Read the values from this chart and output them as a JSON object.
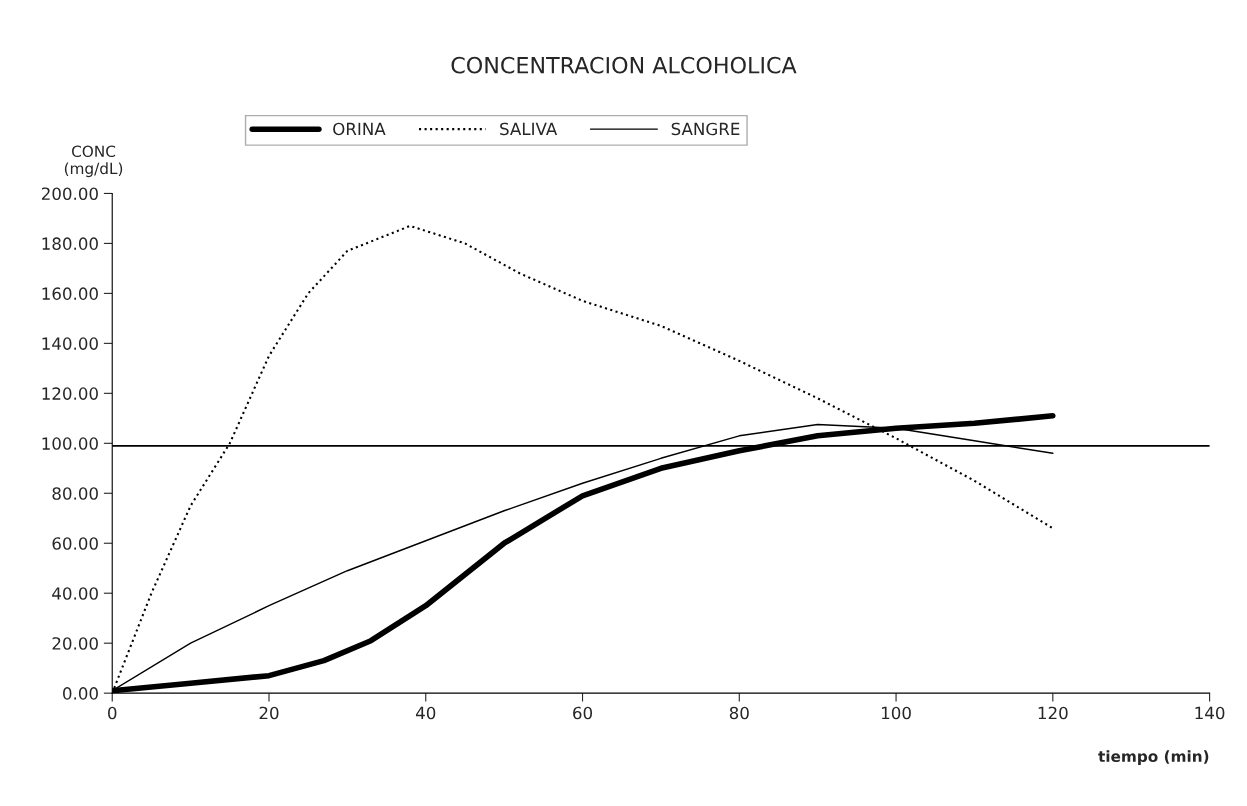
{
  "chart_data": {
    "type": "line",
    "title": "CONCENTRACION ALCOHOLICA",
    "xlabel": "tiempo (min)",
    "ylabel": "CONC\n(mg/dL)",
    "xlim": [
      0,
      140
    ],
    "xticks": [
      0,
      20,
      40,
      60,
      80,
      100,
      120,
      140
    ],
    "ylim": [
      0,
      200
    ],
    "yticks": [
      {
        "value": 0,
        "label": "0.00"
      },
      {
        "value": 20,
        "label": "20.00"
      },
      {
        "value": 40,
        "label": "40.00"
      },
      {
        "value": 60,
        "label": "60.00"
      },
      {
        "value": 80,
        "label": "80.00"
      },
      {
        "value": 100,
        "label": "100.00"
      },
      {
        "value": 120,
        "label": "120.00"
      },
      {
        "value": 140,
        "label": "140.00"
      },
      {
        "value": 160,
        "label": "160.00"
      },
      {
        "value": 180,
        "label": "180.00"
      },
      {
        "value": 200,
        "label": "200.00"
      }
    ],
    "grid": false,
    "legend": "top",
    "marker": "none",
    "ref_lines": [
      {
        "axis": "y",
        "value": 99,
        "color": "#000000",
        "line_style": "solid"
      }
    ],
    "series": [
      {
        "name": "ORINA",
        "color": "#000000",
        "line_style": "solid",
        "x": [
          0,
          10,
          20,
          27,
          33,
          40,
          50,
          60,
          70,
          80,
          90,
          100,
          110,
          120
        ],
        "values": [
          1,
          4,
          7,
          13,
          21,
          35,
          60,
          79,
          90,
          97,
          103,
          106,
          108,
          111
        ]
      },
      {
        "name": "SALIVA",
        "color": "#000000",
        "line_style": "dotted",
        "x": [
          0,
          5,
          10,
          15,
          20,
          25,
          30,
          38,
          45,
          52,
          60,
          70,
          80,
          90,
          100,
          110,
          120
        ],
        "values": [
          0,
          40,
          75,
          100,
          135,
          160,
          177,
          187,
          180,
          168,
          157,
          147,
          133,
          118,
          102,
          85,
          66
        ]
      },
      {
        "name": "SANGRE",
        "color": "#000000",
        "line_style": "solid",
        "x": [
          0,
          10,
          20,
          30,
          40,
          50,
          60,
          70,
          80,
          90,
          100,
          110,
          120
        ],
        "values": [
          1,
          20,
          35,
          49,
          61,
          73,
          84,
          94,
          103,
          107.5,
          106,
          101,
          96
        ]
      }
    ]
  }
}
